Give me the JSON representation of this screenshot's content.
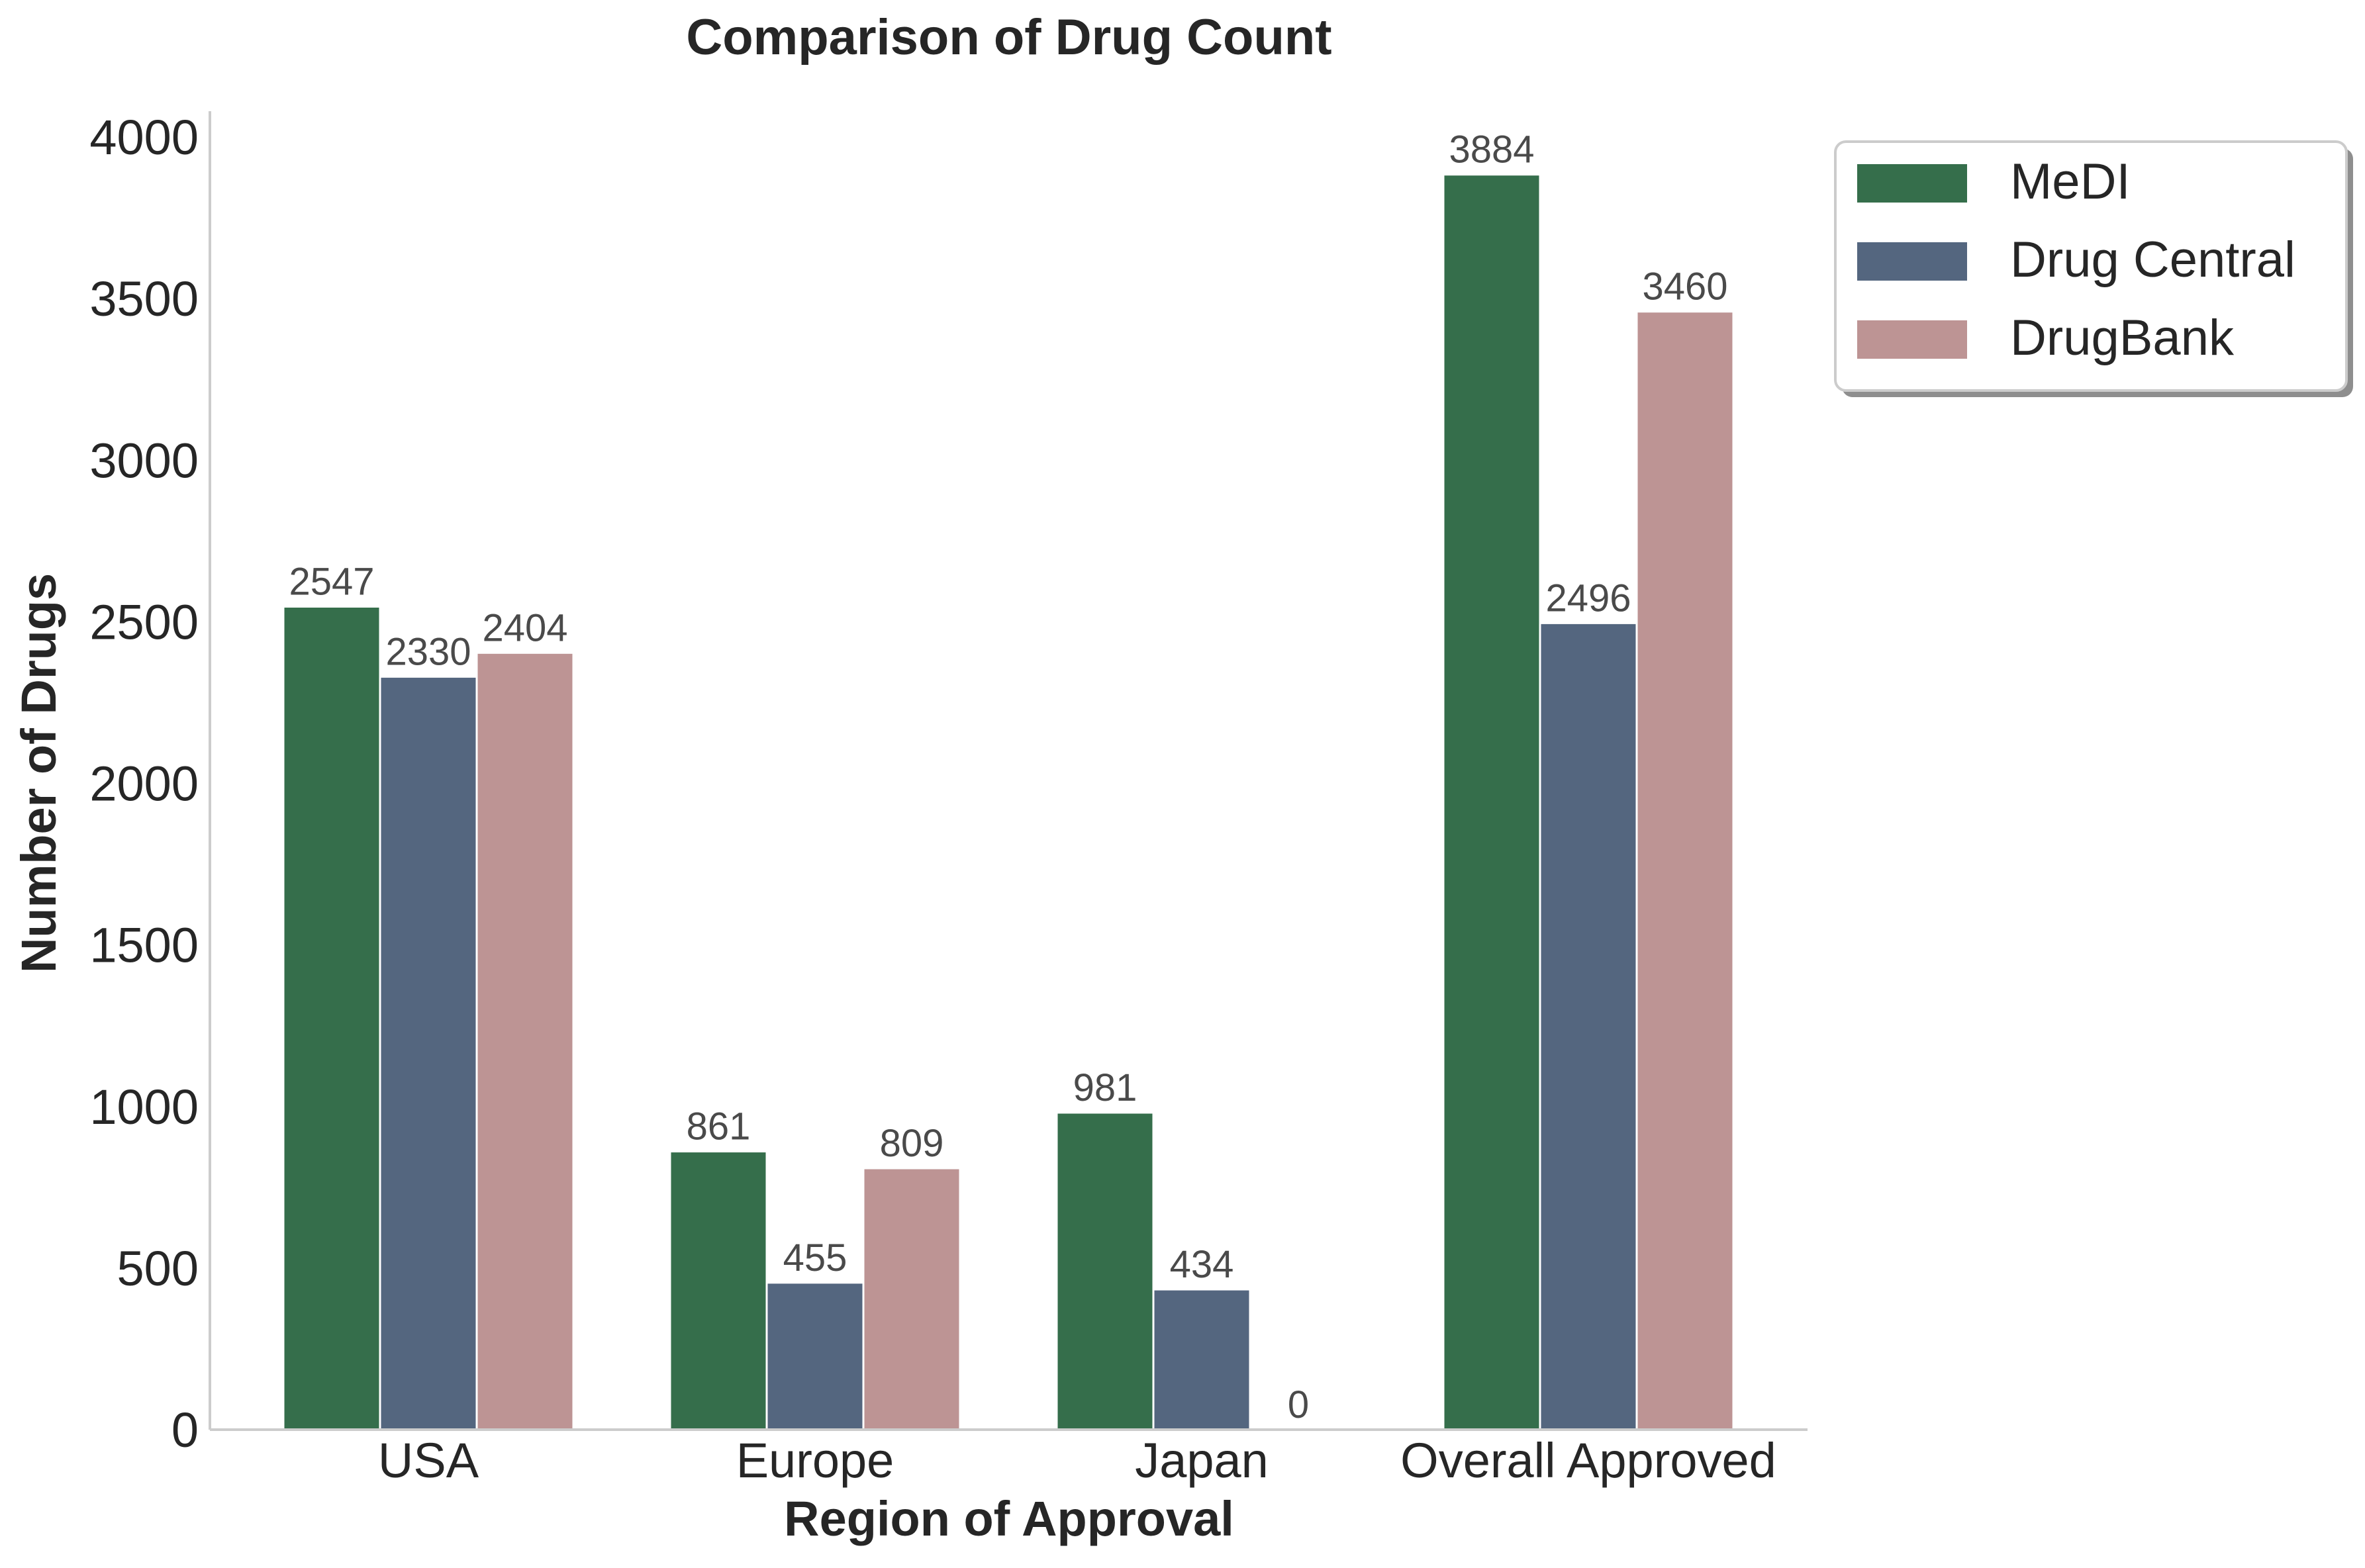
{
  "chart_data": {
    "type": "bar",
    "title": "Comparison of Drug Count",
    "xlabel": "Region of Approval",
    "ylabel": "Number of Drugs",
    "categories": [
      "USA",
      "Europe",
      "Japan",
      "Overall Approved"
    ],
    "series": [
      {
        "name": "MeDI",
        "color": "#356e4b",
        "values": [
          2547,
          861,
          981,
          3884
        ],
        "labels": [
          "2547",
          "861",
          "981",
          "3884"
        ]
      },
      {
        "name": "Drug Central",
        "color": "#54667f",
        "values": [
          2330,
          455,
          434,
          2496
        ],
        "labels": [
          "2330",
          "455",
          "434",
          "2496"
        ]
      },
      {
        "name": "DrugBank",
        "color": "#bd9494",
        "values": [
          2404,
          809,
          0,
          3460
        ],
        "labels": [
          "2404",
          "809",
          "0",
          "3460"
        ]
      }
    ],
    "ylim": [
      0,
      4080
    ],
    "yticks": [
      "0",
      "500",
      "1000",
      "1500",
      "2000",
      "2500",
      "3000",
      "3500",
      "4000"
    ],
    "ytick_values": [
      0,
      500,
      1000,
      1500,
      2000,
      2500,
      3000,
      3500,
      4000
    ],
    "grid": false,
    "legend_position": "upper right, outside plot area"
  }
}
